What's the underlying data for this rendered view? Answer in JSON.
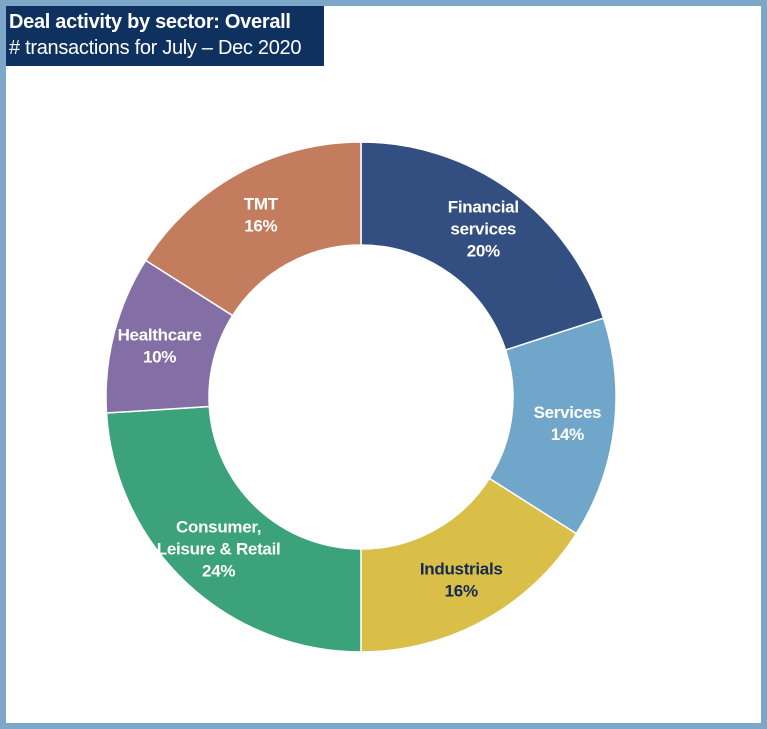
{
  "header": {
    "title": "Deal activity by sector: Overall",
    "subtitle": "# transactions for July – Dec 2020"
  },
  "colors": {
    "frame_border": "#7da7c9",
    "title_background": "#0f3160",
    "title_text": "#ffffff"
  },
  "chart_data": {
    "type": "pie",
    "variant": "donut",
    "title": "Deal activity by sector: Overall",
    "subtitle": "# transactions for July – Dec 2020",
    "legend": "none (labels on slices)",
    "slices": [
      {
        "name": "Financial services",
        "label_lines": [
          "Financial",
          "services"
        ],
        "value": 20,
        "value_label": "20%",
        "color": "#334e80",
        "label_color": "#ffffff"
      },
      {
        "name": "Services",
        "label_lines": [
          "Services"
        ],
        "value": 14,
        "value_label": "14%",
        "color": "#6fa6c9",
        "label_color": "#ffffff"
      },
      {
        "name": "Industrials",
        "label_lines": [
          "Industrials"
        ],
        "value": 16,
        "value_label": "16%",
        "color": "#d9be47",
        "label_color": "#142a52"
      },
      {
        "name": "Consumer, Leisure & Retail",
        "label_lines": [
          "Consumer,",
          "Leisure & Retail"
        ],
        "value": 24,
        "value_label": "24%",
        "color": "#3ba27b",
        "label_color": "#ffffff"
      },
      {
        "name": "Healthcare",
        "label_lines": [
          "Healthcare"
        ],
        "value": 10,
        "value_label": "10%",
        "color": "#836fa5",
        "label_color": "#ffffff"
      },
      {
        "name": "TMT",
        "label_lines": [
          "TMT"
        ],
        "value": 16,
        "value_label": "16%",
        "color": "#c37c5d",
        "label_color": "#ffffff"
      }
    ]
  }
}
